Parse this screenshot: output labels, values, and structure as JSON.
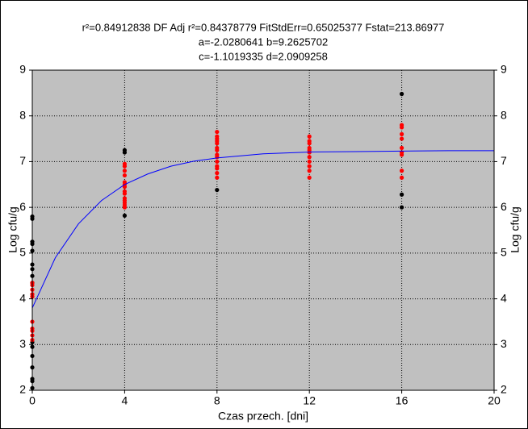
{
  "chart_data": {
    "type": "scatter",
    "title_lines": [
      "r²=0.84912838  DF Adj r²=0.84378779  FitStdErr=0.65025377  Fstat=213.86977",
      "a=-2.0280641 b=9.2625702",
      "c=-1.1019335 d=2.0909258"
    ],
    "xlabel": "Czas przech. [dni]",
    "ylabel": "Log cfu/g",
    "y2label": "Log cfu/g",
    "xlim": [
      0,
      20
    ],
    "xticks": [
      0,
      4,
      8,
      12,
      16,
      20
    ],
    "ylim": [
      2,
      9
    ],
    "yticks": [
      2,
      3,
      4,
      5,
      6,
      7,
      8,
      9
    ],
    "y2lim": [
      2,
      9
    ],
    "y2ticks": [
      2,
      3,
      4,
      5,
      6,
      7,
      8,
      9
    ],
    "grid": true,
    "series": [
      {
        "mode": "points",
        "color": "#000000",
        "x": [
          0,
          0,
          0,
          0,
          0,
          0,
          0,
          0,
          0,
          0,
          0,
          0,
          0,
          0,
          0,
          0,
          4,
          4,
          4,
          8,
          16,
          16,
          16
        ],
        "values": [
          5.8,
          5.75,
          5.25,
          5.2,
          5.05,
          4.75,
          4.65,
          4.5,
          4.35,
          3.05,
          2.95,
          2.75,
          2.5,
          2.25,
          2.2,
          2.05,
          7.25,
          7.2,
          5.82,
          6.38,
          8.48,
          6.28,
          6.0
        ]
      },
      {
        "mode": "points",
        "color": "#ff0000",
        "x": [
          0,
          0,
          0,
          0,
          0,
          0,
          0,
          0,
          0,
          0,
          4,
          4,
          4,
          4,
          4,
          4,
          4,
          4,
          4,
          4,
          4,
          4,
          4,
          4,
          8,
          8,
          8,
          8,
          8,
          8,
          8,
          8,
          8,
          8,
          8,
          8,
          8,
          8,
          12,
          12,
          12,
          12,
          12,
          12,
          12,
          12,
          12,
          12,
          12,
          16,
          16,
          16,
          16,
          16,
          16,
          16,
          16,
          16
        ],
        "values": [
          4.35,
          4.3,
          4.2,
          4.1,
          4.05,
          3.5,
          3.35,
          3.3,
          3.2,
          3.1,
          6.95,
          6.9,
          6.8,
          6.7,
          6.55,
          6.5,
          6.45,
          6.35,
          6.3,
          6.2,
          6.15,
          6.1,
          6.05,
          6.0,
          7.65,
          7.55,
          7.5,
          7.45,
          7.4,
          7.3,
          7.25,
          7.15,
          7.1,
          7.0,
          6.9,
          6.85,
          6.75,
          6.65,
          7.55,
          7.45,
          7.4,
          7.3,
          7.25,
          7.2,
          7.1,
          7.0,
          6.9,
          6.8,
          6.65,
          7.8,
          7.75,
          7.6,
          7.5,
          7.3,
          7.2,
          7.15,
          6.8,
          6.65
        ]
      },
      {
        "mode": "line",
        "color": "#0000ff",
        "x": [
          0,
          1,
          2,
          3,
          4,
          5,
          6,
          7,
          8,
          10,
          12,
          14,
          16,
          18,
          20
        ],
        "values": [
          3.8,
          4.9,
          5.64,
          6.15,
          6.5,
          6.73,
          6.9,
          7.01,
          7.08,
          7.17,
          7.21,
          7.22,
          7.23,
          7.24,
          7.24
        ]
      }
    ]
  }
}
